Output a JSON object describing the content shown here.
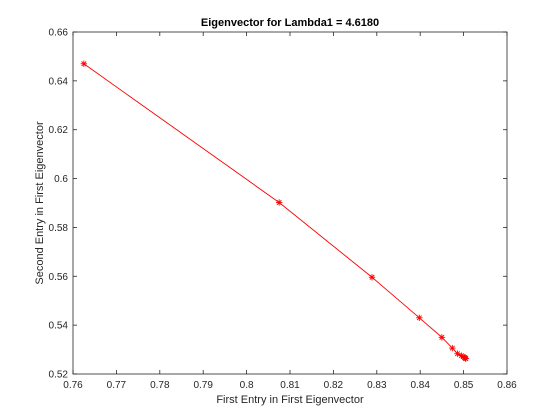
{
  "chart_data": {
    "type": "line",
    "title": "Eigenvector for Lambda1 = 4.6180",
    "xlabel": "First Entry in First Eigenvector",
    "ylabel": "Second Entry in First Eigenvector",
    "xlim": [
      0.76,
      0.86
    ],
    "ylim": [
      0.52,
      0.66
    ],
    "xticks": [
      "0.76",
      "0.77",
      "0.78",
      "0.79",
      "0.8",
      "0.81",
      "0.82",
      "0.83",
      "0.84",
      "0.85",
      "0.86"
    ],
    "yticks": [
      "0.52",
      "0.54",
      "0.56",
      "0.58",
      "0.6",
      "0.62",
      "0.64",
      "0.66"
    ],
    "grid": false,
    "series": [
      {
        "marker": "asterisk",
        "color": "#ff0000",
        "x": [
          0.7625,
          0.8075,
          0.8289,
          0.8398,
          0.845,
          0.8474,
          0.8486,
          0.8495,
          0.8499,
          0.8502,
          0.8504,
          0.8505
        ],
        "y": [
          0.647,
          0.5902,
          0.5596,
          0.543,
          0.535,
          0.5306,
          0.5283,
          0.5275,
          0.5271,
          0.5268,
          0.5265,
          0.5263
        ]
      }
    ]
  }
}
